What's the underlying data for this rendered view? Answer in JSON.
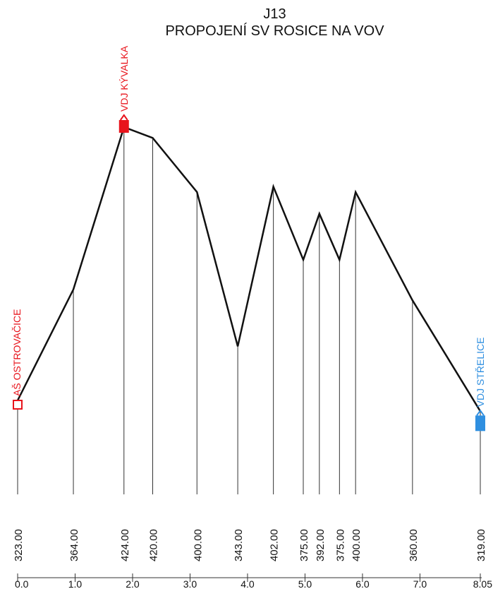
{
  "title": {
    "line1": "J13",
    "line2": "PROPOJENÍ SV ROSICE NA VOV"
  },
  "chart_data": {
    "type": "line",
    "points": [
      {
        "x": 0.0,
        "elev": 323.0,
        "label": "323.00"
      },
      {
        "x": 0.97,
        "elev": 364.0,
        "label": "364.00"
      },
      {
        "x": 1.85,
        "elev": 424.0,
        "label": "424.00"
      },
      {
        "x": 2.35,
        "elev": 420.0,
        "label": "420.00"
      },
      {
        "x": 3.12,
        "elev": 400.0,
        "label": "400.00"
      },
      {
        "x": 3.83,
        "elev": 343.0,
        "label": "343.00"
      },
      {
        "x": 4.45,
        "elev": 402.0,
        "label": "402.00"
      },
      {
        "x": 4.97,
        "elev": 375.0,
        "label": "375.00"
      },
      {
        "x": 5.25,
        "elev": 392.0,
        "label": "392.00"
      },
      {
        "x": 5.6,
        "elev": 375.0,
        "label": "375.00"
      },
      {
        "x": 5.88,
        "elev": 400.0,
        "label": "400.00"
      },
      {
        "x": 6.87,
        "elev": 360.0,
        "label": "360.00"
      },
      {
        "x": 8.05,
        "elev": 319.0,
        "label": "319.00"
      }
    ],
    "x_ticks": [
      "0.0",
      "1.0",
      "2.0",
      "3.0",
      "4.0",
      "5.0",
      "6.0",
      "7.0",
      "8.05"
    ],
    "x_tick_values": [
      0,
      1,
      2,
      3,
      4,
      5,
      6,
      7,
      8.05
    ],
    "xlim": [
      0,
      8.05
    ],
    "ylim": [
      310,
      428
    ],
    "line_color": "#111111"
  },
  "nodes": [
    {
      "name": "AŠ OSTROVAČICE",
      "x": 0.0,
      "elev": 323.0,
      "color": "#e8141c",
      "kind": "source"
    },
    {
      "name": "VDJ KÝVALKA",
      "x": 1.85,
      "elev": 424.0,
      "color": "#e8141c",
      "kind": "tank"
    },
    {
      "name": "VDJ STŘELICE",
      "x": 8.05,
      "elev": 319.0,
      "color": "#2f8fe0",
      "kind": "tank"
    }
  ]
}
